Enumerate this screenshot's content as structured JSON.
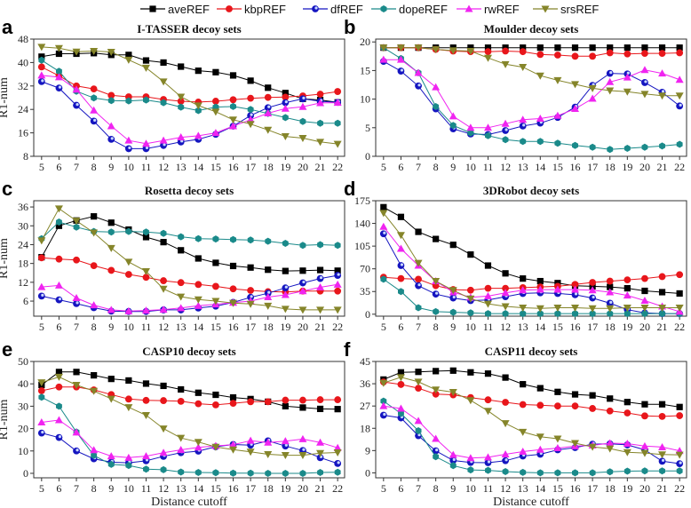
{
  "legend": [
    {
      "name": "aveREF",
      "color": "#000000",
      "marker": "square"
    },
    {
      "name": "kbpREF",
      "color": "#e8161b",
      "marker": "circle"
    },
    {
      "name": "dfREF",
      "color": "#1515c0",
      "marker": "shaded-circle"
    },
    {
      "name": "dopeREF",
      "color": "#1a8a8a",
      "marker": "hexagon"
    },
    {
      "name": "rwREF",
      "color": "#f024f0",
      "marker": "triangle-up"
    },
    {
      "name": "srsREF",
      "color": "#85852a",
      "marker": "triangle-down"
    }
  ],
  "chart_data": [
    {
      "type": "line",
      "panel": "a",
      "title": "I-TASSER decoy sets",
      "xlabel": "",
      "ylabel": "R1-num",
      "x": [
        5,
        6,
        7,
        8,
        9,
        10,
        11,
        12,
        13,
        14,
        15,
        16,
        17,
        18,
        19,
        20,
        21,
        22
      ],
      "ylim": [
        8,
        48
      ],
      "yticks": [
        8,
        16,
        24,
        32,
        40,
        48
      ],
      "grid": false,
      "series": [
        {
          "name": "aveREF",
          "values": [
            42,
            43,
            43,
            43.2,
            42.6,
            42.6,
            40.7,
            40,
            38.6,
            37.2,
            36.7,
            35.6,
            33.8,
            31.4,
            29.6,
            27.6,
            27.2,
            26.4
          ]
        },
        {
          "name": "kbpREF",
          "values": [
            38.5,
            35.5,
            32,
            31,
            28.8,
            28.3,
            28.3,
            27.4,
            26.8,
            26.5,
            26.8,
            27.3,
            27.8,
            28.1,
            28.2,
            28.6,
            29.2,
            30.1
          ]
        },
        {
          "name": "dfREF",
          "values": [
            33.5,
            31.3,
            25.4,
            20,
            13.8,
            10.6,
            10.6,
            11.7,
            12.9,
            13.8,
            15.5,
            18.3,
            21.9,
            24.6,
            26.3,
            27.6,
            26.8,
            26.4
          ]
        },
        {
          "name": "dopeREF",
          "values": [
            40.8,
            37,
            30.2,
            27.9,
            27,
            26.9,
            27.2,
            26.3,
            24.8,
            23.6,
            24.8,
            25,
            24,
            22.6,
            21.2,
            19.9,
            19.3,
            19.3
          ]
        },
        {
          "name": "rwREF",
          "values": [
            35.6,
            35,
            30.8,
            23.7,
            18.3,
            13.4,
            12.3,
            13.4,
            14.5,
            15,
            16,
            18.3,
            20.5,
            22.7,
            24.3,
            24.9,
            26.2,
            26.3
          ]
        },
        {
          "name": "srsREF",
          "values": [
            45.3,
            44.9,
            43.7,
            43.9,
            43.6,
            40.9,
            38.2,
            33.5,
            28.3,
            25.3,
            23.2,
            20.5,
            19,
            17,
            14.8,
            14.2,
            12.9,
            12.2
          ]
        }
      ]
    },
    {
      "type": "line",
      "panel": "b",
      "title": "Moulder decoy sets",
      "xlabel": "",
      "ylabel": "",
      "x": [
        5,
        6,
        7,
        8,
        9,
        10,
        11,
        12,
        13,
        14,
        15,
        16,
        17,
        18,
        19,
        20,
        21,
        22
      ],
      "ylim": [
        0,
        20.5
      ],
      "yticks": [
        0,
        5,
        10,
        15,
        20
      ],
      "grid": false,
      "series": [
        {
          "name": "aveREF",
          "values": [
            19,
            19,
            19,
            19,
            19,
            19,
            19,
            19,
            19,
            19,
            19,
            19,
            19,
            19,
            19,
            19,
            19,
            19
          ]
        },
        {
          "name": "kbpREF",
          "values": [
            19,
            19,
            19,
            18.7,
            18.4,
            18.3,
            18.3,
            18.4,
            18.3,
            17.8,
            17.7,
            17.5,
            17.5,
            18.1,
            17.9,
            18,
            18,
            18.1
          ]
        },
        {
          "name": "dfREF",
          "values": [
            16.6,
            14.9,
            12.3,
            8.3,
            4.8,
            3.9,
            3.8,
            4.5,
            5.3,
            5.8,
            6.8,
            8.6,
            12.4,
            14.5,
            14.4,
            12.9,
            11.2,
            8.8
          ]
        },
        {
          "name": "dopeREF",
          "values": [
            19,
            17.1,
            14.6,
            8.7,
            5.4,
            4.1,
            3.6,
            2.9,
            2.6,
            2.6,
            2.3,
            1.9,
            1.6,
            1.2,
            1.4,
            1.6,
            1.8,
            2.1
          ]
        },
        {
          "name": "rwREF",
          "values": [
            16.9,
            16.9,
            14.6,
            12.1,
            7,
            5,
            5,
            5.7,
            6.4,
            6.6,
            7.1,
            8.3,
            10.1,
            13,
            13.8,
            15.1,
            14.5,
            13.4
          ]
        },
        {
          "name": "srsREF",
          "values": [
            19,
            19,
            19,
            18.7,
            18.5,
            18.4,
            17.2,
            16.1,
            15.6,
            14.1,
            13.3,
            12.6,
            11.9,
            11.5,
            11.3,
            10.9,
            10.6,
            10.6
          ]
        }
      ]
    },
    {
      "type": "line",
      "panel": "c",
      "title": "Rosetta decoy sets",
      "xlabel": "",
      "ylabel": "R1-num",
      "x": [
        5,
        6,
        7,
        8,
        9,
        10,
        11,
        12,
        13,
        14,
        15,
        16,
        17,
        18,
        19,
        20,
        21,
        22
      ],
      "ylim": [
        1.2,
        38
      ],
      "yticks": [
        6,
        12,
        18,
        24,
        30,
        36
      ],
      "grid": false,
      "series": [
        {
          "name": "aveREF",
          "values": [
            20,
            30,
            31.7,
            33,
            31,
            28.8,
            26.4,
            24.8,
            22.2,
            19.6,
            18.2,
            17.2,
            16.7,
            16,
            15.6,
            15.7,
            15.9,
            15.7
          ]
        },
        {
          "name": "kbpREF",
          "values": [
            19.8,
            19.4,
            19.1,
            17.3,
            15.8,
            14.5,
            13.6,
            12.5,
            11.9,
            11.3,
            10.7,
            9.9,
            9.4,
            9,
            8.9,
            9.2,
            9.2,
            9.2
          ]
        },
        {
          "name": "dfREF",
          "values": [
            7.6,
            6.4,
            5.2,
            3.9,
            2.8,
            2.7,
            2.7,
            3.2,
            3.2,
            3.8,
            4.4,
            5.6,
            7.2,
            8.5,
            10.2,
            11.8,
            13.2,
            14.2
          ]
        },
        {
          "name": "dopeREF",
          "values": [
            25.9,
            31.2,
            29.6,
            28.2,
            28,
            28.2,
            28,
            27.6,
            26.5,
            25.9,
            25.8,
            25.6,
            25.5,
            25.1,
            24.4,
            23.8,
            24,
            23.8
          ]
        },
        {
          "name": "rwREF",
          "values": [
            10.5,
            11,
            7,
            4.7,
            3.2,
            2.8,
            3,
            3.3,
            3.8,
            4.5,
            5,
            5.5,
            6,
            7.3,
            8,
            9.2,
            10.4,
            11.3
          ]
        },
        {
          "name": "srsREF",
          "values": [
            25.3,
            35.5,
            31.6,
            27.8,
            22.9,
            18.5,
            15.5,
            9.9,
            7.4,
            6.5,
            6,
            5.4,
            5.1,
            4.5,
            3.5,
            3.2,
            3.2,
            3.2
          ]
        }
      ]
    },
    {
      "type": "line",
      "panel": "d",
      "title": "3DRobot decoy sets",
      "xlabel": "",
      "ylabel": "",
      "x": [
        5,
        6,
        7,
        8,
        9,
        10,
        11,
        12,
        13,
        14,
        15,
        16,
        17,
        18,
        19,
        20,
        21,
        22
      ],
      "ylim": [
        -3,
        175
      ],
      "yticks": [
        0,
        35,
        70,
        105,
        140,
        175
      ],
      "grid": false,
      "series": [
        {
          "name": "aveREF",
          "values": [
            165,
            150,
            127,
            116,
            107,
            92,
            75,
            63,
            55,
            51,
            48,
            44,
            43,
            42,
            40,
            36,
            34,
            32
          ]
        },
        {
          "name": "kbpREF",
          "values": [
            57,
            55,
            54,
            44,
            38,
            37,
            40,
            40,
            41,
            42,
            43,
            46,
            49,
            51,
            53,
            55,
            58,
            61
          ]
        },
        {
          "name": "dfREF",
          "values": [
            124,
            75,
            44,
            31,
            25,
            21,
            22,
            27,
            32,
            33,
            32,
            30,
            25,
            17,
            7,
            2,
            1,
            1
          ]
        },
        {
          "name": "dopeREF",
          "values": [
            54,
            35,
            10,
            4,
            3,
            2,
            1,
            1,
            1,
            1,
            1,
            1,
            1,
            1,
            1,
            1,
            1,
            1
          ]
        },
        {
          "name": "rwREF",
          "values": [
            135,
            101,
            75,
            51,
            34,
            26,
            28,
            33,
            37,
            38,
            38,
            38,
            37,
            34,
            29,
            21,
            12,
            4
          ]
        },
        {
          "name": "srsREF",
          "values": [
            156,
            122,
            79,
            51,
            37,
            24,
            16,
            12,
            10,
            9,
            10,
            10,
            9,
            9,
            10,
            10,
            10,
            10
          ]
        }
      ]
    },
    {
      "type": "line",
      "panel": "e",
      "title": "CASP10 decoy sets",
      "xlabel": "Distance cutoff",
      "ylabel": "R1-num",
      "x": [
        5,
        6,
        7,
        8,
        9,
        10,
        11,
        12,
        13,
        14,
        15,
        16,
        17,
        18,
        19,
        20,
        21,
        22
      ],
      "ylim": [
        -2,
        50
      ],
      "yticks": [
        0,
        10,
        20,
        30,
        40,
        50
      ],
      "grid": false,
      "series": [
        {
          "name": "aveREF",
          "values": [
            39.5,
            45.3,
            45.3,
            43.8,
            42.2,
            41.5,
            40.1,
            39.1,
            37.5,
            36,
            35.1,
            33.9,
            33.2,
            32,
            30,
            29.4,
            28.8,
            28.7
          ]
        },
        {
          "name": "kbpREF",
          "values": [
            36.9,
            38.6,
            38.6,
            37.3,
            35.2,
            33.2,
            32.6,
            32.5,
            32.2,
            31.1,
            30.6,
            31.3,
            32,
            32,
            32.7,
            32.7,
            32.9,
            32.9
          ]
        },
        {
          "name": "dfREF",
          "values": [
            18,
            16,
            10,
            6.5,
            5,
            4.7,
            5.6,
            7.6,
            9.2,
            9.9,
            11.9,
            12.9,
            12.6,
            14.5,
            12.2,
            10.2,
            7,
            4.4
          ]
        },
        {
          "name": "dopeREF",
          "values": [
            34,
            30,
            18.5,
            8,
            4,
            3.5,
            1.9,
            1.6,
            0.6,
            0.4,
            0.3,
            0.1,
            0.1,
            0,
            0,
            0,
            0.4,
            0.5
          ]
        },
        {
          "name": "rwREF",
          "values": [
            22.8,
            23.8,
            18.3,
            10.4,
            7.7,
            7,
            7.7,
            9.2,
            10.5,
            11.6,
            12.3,
            12.8,
            14.6,
            13.8,
            14.4,
            15.3,
            13.8,
            11.4
          ]
        },
        {
          "name": "srsREF",
          "values": [
            40.6,
            43.1,
            39.5,
            36.8,
            33.3,
            29.5,
            26,
            20,
            15.8,
            14,
            11.8,
            10.6,
            9.6,
            8.5,
            8.1,
            8.1,
            9,
            9.3
          ]
        }
      ]
    },
    {
      "type": "line",
      "panel": "f",
      "title": "CASP11 decoy sets",
      "xlabel": "Distance cutoff",
      "ylabel": "",
      "x": [
        5,
        6,
        7,
        8,
        9,
        10,
        11,
        12,
        13,
        14,
        15,
        16,
        17,
        18,
        19,
        20,
        21,
        22
      ],
      "ylim": [
        -2,
        45
      ],
      "yticks": [
        0,
        9,
        18,
        27,
        36,
        45
      ],
      "grid": false,
      "series": [
        {
          "name": "aveREF",
          "values": [
            37.7,
            40.6,
            40.8,
            41.1,
            41.3,
            40.6,
            40.1,
            38.5,
            35.8,
            34.2,
            32.7,
            31.7,
            31.3,
            30,
            28.6,
            27.7,
            27.7,
            26.6
          ]
        },
        {
          "name": "kbpREF",
          "values": [
            36.7,
            35.7,
            34.2,
            31.8,
            31.5,
            30.4,
            29.5,
            28.5,
            27.6,
            27.3,
            27,
            27,
            26,
            25,
            24.2,
            23,
            22.8,
            23.1
          ]
        },
        {
          "name": "dfREF",
          "values": [
            23.3,
            22.2,
            15,
            8.9,
            5,
            4.2,
            4.1,
            4.9,
            6.8,
            7.5,
            9.3,
            10.2,
            11.6,
            11.7,
            11.3,
            9.3,
            4.7,
            3.7
          ]
        },
        {
          "name": "dopeREF",
          "values": [
            29,
            24,
            17,
            6.5,
            2.9,
            1.2,
            1,
            0.5,
            0.2,
            0,
            0,
            0,
            0,
            0.4,
            0.7,
            0.8,
            0.8,
            0.8
          ]
        },
        {
          "name": "rwREF",
          "values": [
            27,
            26,
            21,
            13.8,
            7.3,
            6,
            6.3,
            7.5,
            8.6,
            9.4,
            10,
            10.8,
            11.1,
            12,
            11.8,
            10.8,
            10.4,
            8.9
          ]
        },
        {
          "name": "srsREF",
          "values": [
            36.3,
            38.6,
            36.8,
            33.6,
            32.6,
            29.3,
            25,
            20,
            16.5,
            14.6,
            13.8,
            12,
            10.5,
            9.8,
            8.3,
            8,
            7.4,
            7.3
          ]
        }
      ]
    }
  ]
}
